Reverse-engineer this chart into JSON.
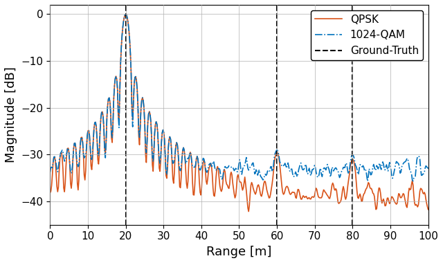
{
  "title": "",
  "xlabel": "Range [m]",
  "ylabel": "Magnitude [dB]",
  "xlim": [
    0,
    100
  ],
  "ylim": [
    -45,
    2
  ],
  "xticks": [
    0,
    10,
    20,
    30,
    40,
    50,
    60,
    70,
    80,
    90,
    100
  ],
  "yticks": [
    0,
    -10,
    -20,
    -30,
    -40
  ],
  "ground_truth_lines": [
    20,
    60,
    80
  ],
  "qpsk_color": "#D95319",
  "qam_color": "#0072BD",
  "gt_color": "#000000",
  "legend_labels": [
    "QPSK",
    "1024-QAM",
    "Ground-Truth"
  ],
  "seed_qpsk": 42,
  "seed_qam": 123,
  "num_points": 500
}
